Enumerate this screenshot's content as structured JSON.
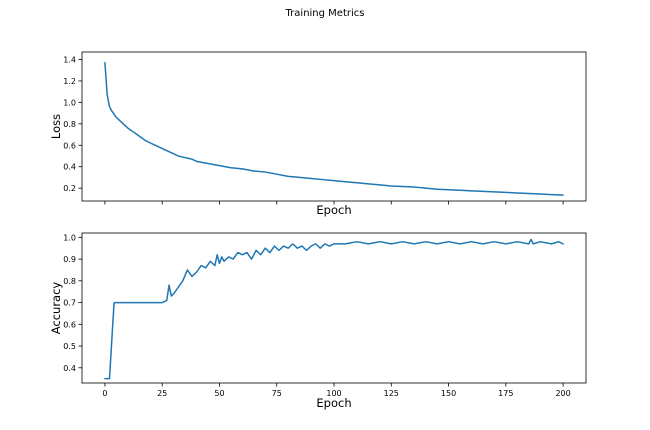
{
  "figure": {
    "title": "Training Metrics"
  },
  "chart_data": [
    {
      "type": "line",
      "title": "",
      "xlabel": "Epoch",
      "ylabel": "Loss",
      "xlim": [
        -10,
        210
      ],
      "ylim": [
        0.08,
        1.47
      ],
      "xticks": [
        0,
        25,
        50,
        75,
        100,
        125,
        150,
        175,
        200
      ],
      "xtick_labels": [],
      "yticks": [
        0.2,
        0.4,
        0.6,
        0.8,
        1.0,
        1.2,
        1.4
      ],
      "ytick_labels": [
        "0.2",
        "0.4",
        "0.6",
        "0.8",
        "1.0",
        "1.2",
        "1.4"
      ],
      "grid": false,
      "color": "#1f77b4",
      "x": [
        0,
        1,
        2,
        3,
        4,
        5,
        6,
        7,
        8,
        9,
        10,
        12,
        14,
        16,
        18,
        20,
        22,
        24,
        26,
        28,
        30,
        32,
        34,
        36,
        38,
        40,
        45,
        50,
        55,
        60,
        65,
        70,
        75,
        80,
        85,
        90,
        95,
        100,
        105,
        110,
        115,
        120,
        125,
        130,
        135,
        140,
        145,
        150,
        155,
        160,
        165,
        170,
        175,
        180,
        185,
        190,
        195,
        200
      ],
      "y": [
        1.37,
        1.07,
        0.96,
        0.92,
        0.89,
        0.86,
        0.84,
        0.82,
        0.8,
        0.78,
        0.76,
        0.73,
        0.7,
        0.67,
        0.64,
        0.62,
        0.6,
        0.58,
        0.56,
        0.54,
        0.52,
        0.5,
        0.49,
        0.48,
        0.47,
        0.45,
        0.43,
        0.41,
        0.39,
        0.38,
        0.36,
        0.35,
        0.33,
        0.31,
        0.3,
        0.29,
        0.28,
        0.27,
        0.26,
        0.25,
        0.24,
        0.23,
        0.22,
        0.215,
        0.21,
        0.2,
        0.19,
        0.185,
        0.18,
        0.175,
        0.17,
        0.165,
        0.16,
        0.155,
        0.15,
        0.145,
        0.14,
        0.135
      ]
    },
    {
      "type": "line",
      "title": "",
      "xlabel": "Epoch",
      "ylabel": "Accuracy",
      "xlim": [
        -10,
        210
      ],
      "ylim": [
        0.33,
        1.02
      ],
      "xticks": [
        0,
        25,
        50,
        75,
        100,
        125,
        150,
        175,
        200
      ],
      "xtick_labels": [
        "0",
        "25",
        "50",
        "75",
        "100",
        "125",
        "150",
        "175",
        "200"
      ],
      "yticks": [
        0.4,
        0.5,
        0.6,
        0.7,
        0.8,
        0.9,
        1.0
      ],
      "ytick_labels": [
        "0.4",
        "0.5",
        "0.6",
        "0.7",
        "0.8",
        "0.9",
        "1.0"
      ],
      "grid": false,
      "color": "#1f77b4",
      "x": [
        0,
        2,
        4,
        6,
        10,
        15,
        20,
        25,
        27,
        28,
        29,
        30,
        32,
        34,
        36,
        38,
        40,
        42,
        44,
        46,
        48,
        49,
        50,
        51,
        52,
        54,
        56,
        58,
        60,
        62,
        64,
        66,
        68,
        70,
        72,
        74,
        76,
        78,
        80,
        82,
        84,
        86,
        88,
        90,
        92,
        94,
        96,
        98,
        100,
        105,
        110,
        115,
        120,
        125,
        130,
        135,
        140,
        145,
        150,
        155,
        160,
        165,
        170,
        175,
        180,
        185,
        186,
        187,
        190,
        195,
        198,
        200
      ],
      "y": [
        0.35,
        0.35,
        0.7,
        0.7,
        0.7,
        0.7,
        0.7,
        0.7,
        0.71,
        0.78,
        0.73,
        0.74,
        0.77,
        0.8,
        0.85,
        0.82,
        0.84,
        0.87,
        0.86,
        0.89,
        0.87,
        0.92,
        0.88,
        0.91,
        0.89,
        0.91,
        0.9,
        0.93,
        0.92,
        0.93,
        0.9,
        0.94,
        0.92,
        0.95,
        0.93,
        0.96,
        0.94,
        0.96,
        0.95,
        0.97,
        0.95,
        0.96,
        0.94,
        0.96,
        0.97,
        0.95,
        0.97,
        0.96,
        0.97,
        0.97,
        0.98,
        0.97,
        0.98,
        0.97,
        0.98,
        0.97,
        0.98,
        0.97,
        0.98,
        0.97,
        0.98,
        0.97,
        0.98,
        0.97,
        0.98,
        0.97,
        0.99,
        0.97,
        0.98,
        0.97,
        0.98,
        0.97
      ]
    }
  ]
}
